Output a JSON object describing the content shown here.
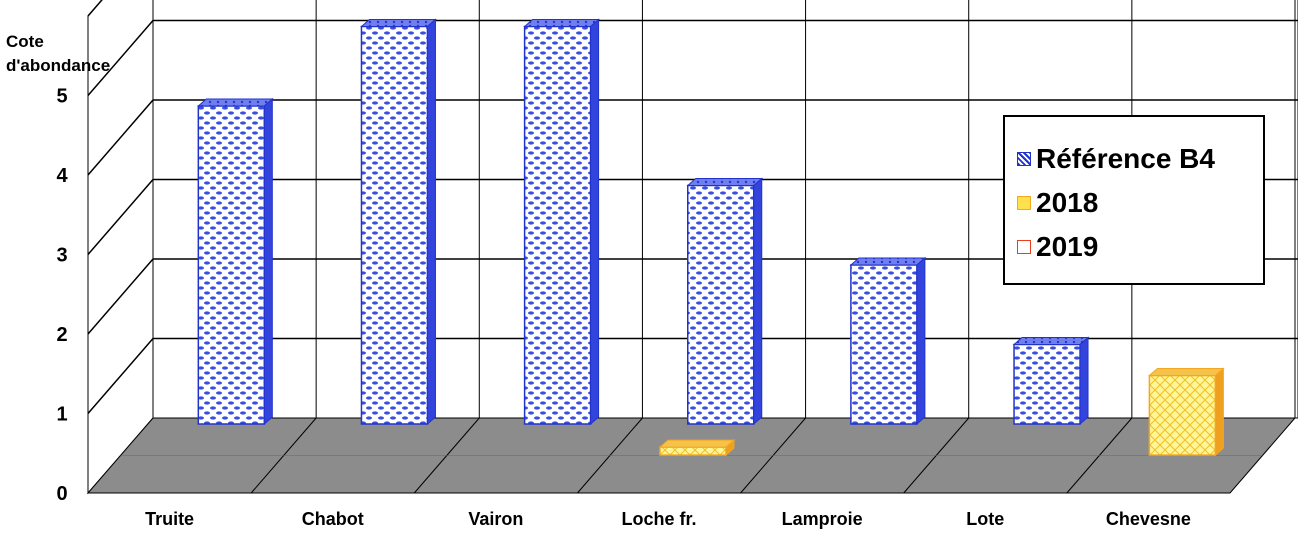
{
  "chart_data": {
    "type": "bar",
    "ylabel": "Cote d'abondance",
    "ylim": [
      0,
      5
    ],
    "yticks": [
      "0",
      "1",
      "2",
      "3",
      "4",
      "5"
    ],
    "categories": [
      "Truite",
      "Chabot",
      "Vairon",
      "Loche fr.",
      "Lamproie",
      "Lote",
      "Chevesne"
    ],
    "series": [
      {
        "name": "Référence B4",
        "values": [
          4,
          5,
          5,
          3,
          2,
          1,
          0
        ],
        "color": "#3333cc"
      },
      {
        "name": "2018",
        "values": [
          0,
          0,
          0,
          0.1,
          0,
          0,
          1
        ],
        "color": "#f5a623"
      },
      {
        "name": "2019",
        "values": [
          0,
          0,
          0,
          0,
          0,
          0,
          0
        ],
        "color": "#e8401c"
      }
    ],
    "grid": true,
    "legend_position": "right",
    "three_d": true
  }
}
